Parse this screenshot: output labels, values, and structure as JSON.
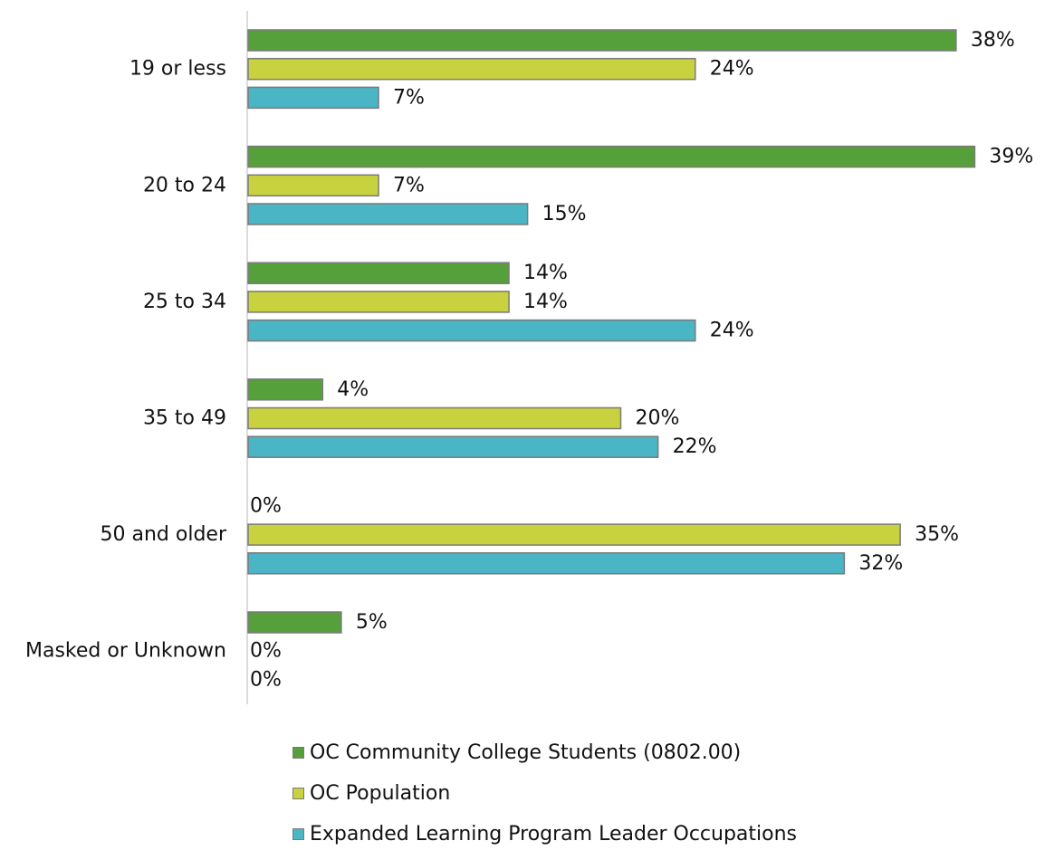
{
  "chart_data": {
    "type": "bar",
    "orientation": "horizontal",
    "categories": [
      "19 or less",
      "20 to 24",
      "25 to 34",
      "35 to 49",
      "50 and older",
      "Masked or Unknown"
    ],
    "series": [
      {
        "name": "OC Community College Students (0802.00)",
        "color": "#55a03a",
        "values": [
          38,
          39,
          14,
          4,
          0,
          5
        ],
        "labels": [
          "38%",
          "39%",
          "14%",
          "4%",
          "0%",
          "5%"
        ]
      },
      {
        "name": "OC Population",
        "color": "#c8d23e",
        "values": [
          24,
          7,
          14,
          20,
          35,
          0
        ],
        "labels": [
          "24%",
          "7%",
          "14%",
          "20%",
          "35%",
          "0%"
        ]
      },
      {
        "name": "Expanded Learning Program Leader Occupations",
        "color": "#4ab5c4",
        "values": [
          7,
          15,
          24,
          22,
          32,
          0
        ],
        "labels": [
          "7%",
          "15%",
          "24%",
          "22%",
          "32%",
          "0%"
        ]
      }
    ],
    "value_unit": "%",
    "xlim": [
      0,
      40
    ],
    "grid": false,
    "legend_position": "bottom"
  }
}
